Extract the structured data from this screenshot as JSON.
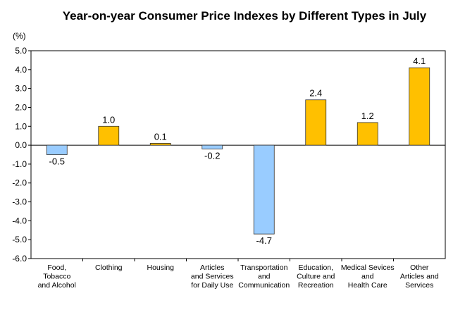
{
  "chart_data": {
    "type": "bar",
    "title": "Year-on-year Consumer Price Indexes by Different Types in July",
    "ylabel": "(%)",
    "xlabel": "",
    "ylim": [
      -6.0,
      5.0
    ],
    "yticks": [
      "5.0",
      "4.0",
      "3.0",
      "2.0",
      "1.0",
      "0.0",
      "-1.0",
      "-2.0",
      "-3.0",
      "-4.0",
      "-5.0",
      "-6.0"
    ],
    "grid": false,
    "legend": "none",
    "categories": [
      [
        "Food,",
        "Tobacco",
        "and Alcohol"
      ],
      [
        "Clothing"
      ],
      [
        "Housing"
      ],
      [
        "Articles",
        "and Services",
        "for Daily Use"
      ],
      [
        "Transportation",
        "and",
        "Communication"
      ],
      [
        "Education,",
        "Culture and",
        "Recreation"
      ],
      [
        "Medical Sevices",
        "and",
        "Health Care"
      ],
      [
        "Other",
        "Articles and",
        "Services"
      ]
    ],
    "values": [
      -0.5,
      1.0,
      0.1,
      -0.2,
      -4.7,
      2.4,
      1.2,
      4.1
    ],
    "value_labels": [
      "-0.5",
      "1.0",
      "0.1",
      "-0.2",
      "-4.7",
      "2.4",
      "1.2",
      "4.1"
    ],
    "colors": {
      "positive": "#FFC000",
      "negative": "#99CCFF",
      "outline": "#333333",
      "axis": "#000000"
    }
  }
}
